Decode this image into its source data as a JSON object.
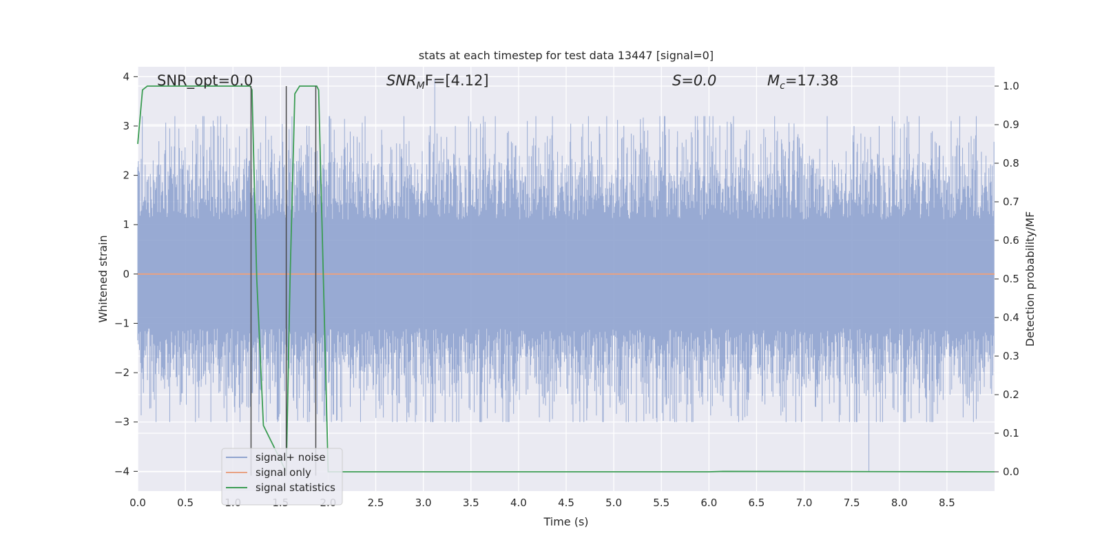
{
  "chart_data": {
    "type": "line",
    "title": "stats at each timestep for test data 13447 [signal=0]",
    "xlabel": "Time (s)",
    "ylabel": "Whitened strain",
    "y2label": "Detection probability/MF",
    "xlim": [
      0.0,
      9.0
    ],
    "ylim": [
      -4.4,
      4.2
    ],
    "y2lim": [
      -0.05,
      1.05
    ],
    "x_ticks": [
      "0.0",
      "0.5",
      "1.0",
      "1.5",
      "2.0",
      "2.5",
      "3.0",
      "3.5",
      "4.0",
      "4.5",
      "5.0",
      "5.5",
      "6.0",
      "6.5",
      "7.0",
      "7.5",
      "8.0",
      "8.5"
    ],
    "y_ticks": [
      "4",
      "3",
      "2",
      "1",
      "0",
      "−1",
      "−2",
      "−3",
      "−4"
    ],
    "y2_ticks": [
      "1.0",
      "0.9",
      "0.8",
      "0.7",
      "0.6",
      "0.5",
      "0.4",
      "0.3",
      "0.2",
      "0.1",
      "0.0"
    ],
    "grid": true,
    "legend_position": "lower-left",
    "annotations": {
      "snr_opt": "SNR_opt=0.0",
      "snr_mf_base": "SNR",
      "snr_mf_sub": "M",
      "snr_mf_rest": "F=[4.12]",
      "s_stat": "S=0.0",
      "mc_base": "M",
      "mc_sub": "c",
      "mc_rest": "=17.38"
    },
    "series": [
      {
        "name": "signal+ noise",
        "color": "#8fa3cf",
        "axis": "left",
        "kind": "noise",
        "x_range": [
          0.0,
          9.0
        ],
        "typical_peak_range": [
          -3.0,
          3.2
        ],
        "max_value": 3.95,
        "min_value": -4.0
      },
      {
        "name": "signal only",
        "color": "#e8a283",
        "axis": "left",
        "x": [
          0.0,
          9.0
        ],
        "values": [
          0.0,
          0.0
        ]
      },
      {
        "name": "signal statistics",
        "color": "#3a9c52",
        "axis": "right",
        "x": [
          0.0,
          0.05,
          0.1,
          0.2,
          0.6,
          1.0,
          1.18,
          1.2,
          1.25,
          1.32,
          1.56,
          1.6,
          1.65,
          1.7,
          1.88,
          1.9,
          1.95,
          2.0,
          6.0,
          6.15,
          9.0
        ],
        "values": [
          0.85,
          0.99,
          1.0,
          1.0,
          1.0,
          1.0,
          1.0,
          0.99,
          0.5,
          0.12,
          0.0,
          0.5,
          0.98,
          1.0,
          1.0,
          0.99,
          0.5,
          0.0,
          0.0,
          0.001,
          0.0
        ]
      }
    ],
    "vertical_markers": {
      "color": "#4a4a4a",
      "x": [
        1.19,
        1.56,
        1.87
      ]
    }
  }
}
